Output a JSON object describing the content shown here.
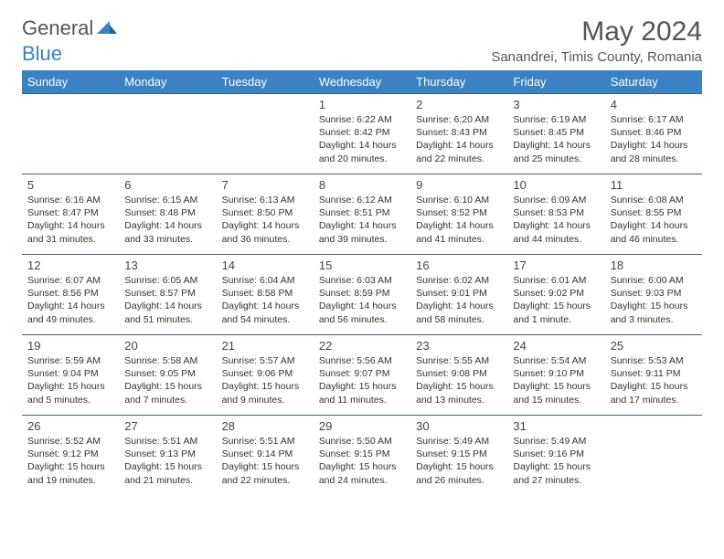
{
  "logo": {
    "text1": "General",
    "text2": "Blue"
  },
  "title": "May 2024",
  "location": "Sanandrei, Timis County, Romania",
  "colors": {
    "brand": "#3b82c4",
    "header_text": "#ffffff",
    "border": "#3b5f80",
    "text": "#333333",
    "muted": "#555555"
  },
  "day_headers": [
    "Sunday",
    "Monday",
    "Tuesday",
    "Wednesday",
    "Thursday",
    "Friday",
    "Saturday"
  ],
  "weeks": [
    [
      null,
      null,
      null,
      {
        "n": "1",
        "sr": "6:22 AM",
        "ss": "8:42 PM",
        "dl": "14 hours and 20 minutes."
      },
      {
        "n": "2",
        "sr": "6:20 AM",
        "ss": "8:43 PM",
        "dl": "14 hours and 22 minutes."
      },
      {
        "n": "3",
        "sr": "6:19 AM",
        "ss": "8:45 PM",
        "dl": "14 hours and 25 minutes."
      },
      {
        "n": "4",
        "sr": "6:17 AM",
        "ss": "8:46 PM",
        "dl": "14 hours and 28 minutes."
      }
    ],
    [
      {
        "n": "5",
        "sr": "6:16 AM",
        "ss": "8:47 PM",
        "dl": "14 hours and 31 minutes."
      },
      {
        "n": "6",
        "sr": "6:15 AM",
        "ss": "8:48 PM",
        "dl": "14 hours and 33 minutes."
      },
      {
        "n": "7",
        "sr": "6:13 AM",
        "ss": "8:50 PM",
        "dl": "14 hours and 36 minutes."
      },
      {
        "n": "8",
        "sr": "6:12 AM",
        "ss": "8:51 PM",
        "dl": "14 hours and 39 minutes."
      },
      {
        "n": "9",
        "sr": "6:10 AM",
        "ss": "8:52 PM",
        "dl": "14 hours and 41 minutes."
      },
      {
        "n": "10",
        "sr": "6:09 AM",
        "ss": "8:53 PM",
        "dl": "14 hours and 44 minutes."
      },
      {
        "n": "11",
        "sr": "6:08 AM",
        "ss": "8:55 PM",
        "dl": "14 hours and 46 minutes."
      }
    ],
    [
      {
        "n": "12",
        "sr": "6:07 AM",
        "ss": "8:56 PM",
        "dl": "14 hours and 49 minutes."
      },
      {
        "n": "13",
        "sr": "6:05 AM",
        "ss": "8:57 PM",
        "dl": "14 hours and 51 minutes."
      },
      {
        "n": "14",
        "sr": "6:04 AM",
        "ss": "8:58 PM",
        "dl": "14 hours and 54 minutes."
      },
      {
        "n": "15",
        "sr": "6:03 AM",
        "ss": "8:59 PM",
        "dl": "14 hours and 56 minutes."
      },
      {
        "n": "16",
        "sr": "6:02 AM",
        "ss": "9:01 PM",
        "dl": "14 hours and 58 minutes."
      },
      {
        "n": "17",
        "sr": "6:01 AM",
        "ss": "9:02 PM",
        "dl": "15 hours and 1 minute."
      },
      {
        "n": "18",
        "sr": "6:00 AM",
        "ss": "9:03 PM",
        "dl": "15 hours and 3 minutes."
      }
    ],
    [
      {
        "n": "19",
        "sr": "5:59 AM",
        "ss": "9:04 PM",
        "dl": "15 hours and 5 minutes."
      },
      {
        "n": "20",
        "sr": "5:58 AM",
        "ss": "9:05 PM",
        "dl": "15 hours and 7 minutes."
      },
      {
        "n": "21",
        "sr": "5:57 AM",
        "ss": "9:06 PM",
        "dl": "15 hours and 9 minutes."
      },
      {
        "n": "22",
        "sr": "5:56 AM",
        "ss": "9:07 PM",
        "dl": "15 hours and 11 minutes."
      },
      {
        "n": "23",
        "sr": "5:55 AM",
        "ss": "9:08 PM",
        "dl": "15 hours and 13 minutes."
      },
      {
        "n": "24",
        "sr": "5:54 AM",
        "ss": "9:10 PM",
        "dl": "15 hours and 15 minutes."
      },
      {
        "n": "25",
        "sr": "5:53 AM",
        "ss": "9:11 PM",
        "dl": "15 hours and 17 minutes."
      }
    ],
    [
      {
        "n": "26",
        "sr": "5:52 AM",
        "ss": "9:12 PM",
        "dl": "15 hours and 19 minutes."
      },
      {
        "n": "27",
        "sr": "5:51 AM",
        "ss": "9:13 PM",
        "dl": "15 hours and 21 minutes."
      },
      {
        "n": "28",
        "sr": "5:51 AM",
        "ss": "9:14 PM",
        "dl": "15 hours and 22 minutes."
      },
      {
        "n": "29",
        "sr": "5:50 AM",
        "ss": "9:15 PM",
        "dl": "15 hours and 24 minutes."
      },
      {
        "n": "30",
        "sr": "5:49 AM",
        "ss": "9:15 PM",
        "dl": "15 hours and 26 minutes."
      },
      {
        "n": "31",
        "sr": "5:49 AM",
        "ss": "9:16 PM",
        "dl": "15 hours and 27 minutes."
      },
      null
    ]
  ],
  "labels": {
    "sunrise": "Sunrise:",
    "sunset": "Sunset:",
    "daylight": "Daylight:"
  }
}
